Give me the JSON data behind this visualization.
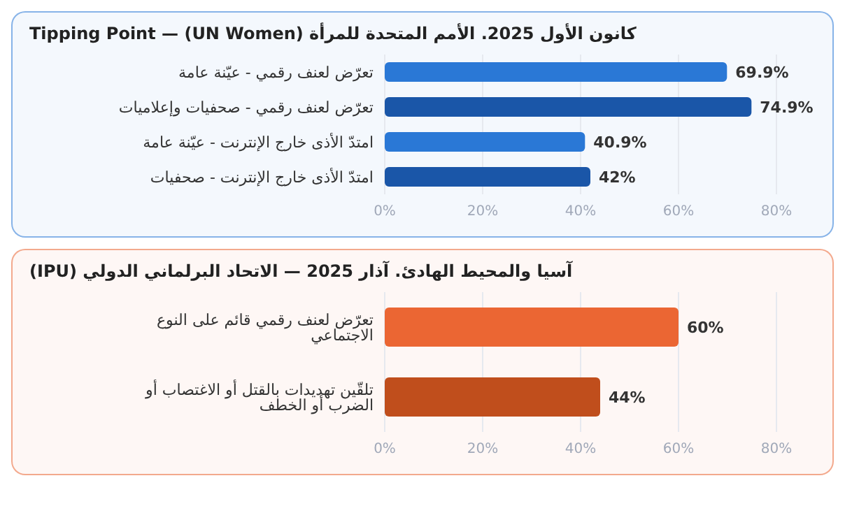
{
  "chart_data": [
    {
      "type": "bar",
      "orientation": "horizontal",
      "title": "كانون الأول 2025. الأمم المتحدة للمرأة (UN Women) — Tipping Point",
      "categories": [
        "تعرّض لعنف رقمي - عيّنة عامة",
        "تعرّض لعنف رقمي - صحفيات وإعلاميات",
        "امتدّ الأذى خارج الإنترنت - عيّنة عامة",
        "امتدّ الأذى خارج الإنترنت - صحفيات"
      ],
      "values": [
        69.9,
        74.9,
        40.9,
        42
      ],
      "colors": [
        "#2a78d6",
        "#1a56a8",
        "#2a78d6",
        "#1a56a8"
      ],
      "value_labels": [
        "69.9%",
        "74.9%",
        "40.9%",
        "42%"
      ],
      "xlim": [
        0,
        80
      ],
      "xticks": [
        {
          "value": 0,
          "label": "0%"
        },
        {
          "value": 20,
          "label": "20%"
        },
        {
          "value": 40,
          "label": "40%"
        },
        {
          "value": 60,
          "label": "60%"
        },
        {
          "value": 80,
          "label": "80%"
        }
      ],
      "grid": "x"
    },
    {
      "type": "bar",
      "orientation": "horizontal",
      "title": "آسيا والمحيط الهادئ. آذار 2025 — الاتحاد البرلماني الدولي (IPU)",
      "categories": [
        "تعرّض لعنف رقمي قائم على النوع الاجتماعي",
        "تلقّين تهديدات بالقتل أو الاغتصاب أو الضرب أو الخطف"
      ],
      "values": [
        60,
        44
      ],
      "colors": [
        "#eb6633",
        "#c04e1c"
      ],
      "value_labels": [
        "60%",
        "44%"
      ],
      "xlim": [
        0,
        80
      ],
      "xticks": [
        {
          "value": 0,
          "label": "0%"
        },
        {
          "value": 20,
          "label": "20%"
        },
        {
          "value": 40,
          "label": "40%"
        },
        {
          "value": 60,
          "label": "60%"
        },
        {
          "value": 80,
          "label": "80%"
        }
      ],
      "grid": "x"
    }
  ]
}
